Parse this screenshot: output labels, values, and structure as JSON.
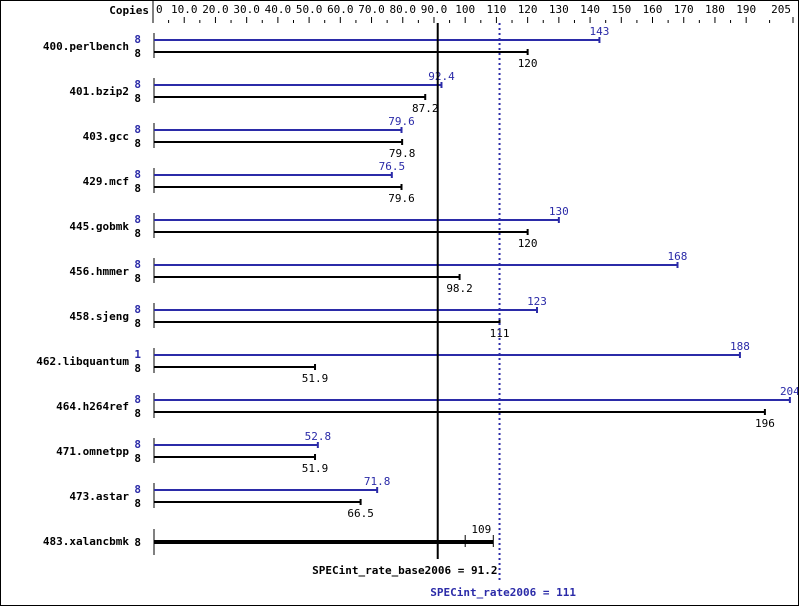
{
  "chart_data": {
    "type": "bar",
    "orientation": "horizontal",
    "title": "",
    "xlabel": "",
    "ylabel": "",
    "axis_header": "Copies",
    "xlim": [
      0,
      205
    ],
    "x_ticks": [
      "0",
      "10.0",
      "20.0",
      "30.0",
      "40.0",
      "50.0",
      "60.0",
      "70.0",
      "80.0",
      "90.0",
      "100",
      "110",
      "120",
      "130",
      "140",
      "150",
      "160",
      "170",
      "180",
      "190",
      "205"
    ],
    "x_tick_values": [
      0,
      10,
      20,
      30,
      40,
      50,
      60,
      70,
      80,
      90,
      100,
      110,
      120,
      130,
      140,
      150,
      160,
      170,
      180,
      190,
      205
    ],
    "grid": false,
    "legend": "none",
    "categories": [
      "400.perlbench",
      "401.bzip2",
      "403.gcc",
      "429.mcf",
      "445.gobmk",
      "456.hmmer",
      "458.sjeng",
      "462.libquantum",
      "464.h264ref",
      "471.omnetpp",
      "473.astar",
      "483.xalancbmk"
    ],
    "series": [
      {
        "name": "SPECint_rate2006 (peak)",
        "color": "#2b2ba8",
        "copies": [
          "8",
          "8",
          "8",
          "8",
          "8",
          "8",
          "8",
          "1",
          "8",
          "8",
          "8",
          "8"
        ],
        "values": [
          143,
          92.4,
          79.6,
          76.5,
          130,
          168,
          123,
          188,
          204,
          52.8,
          71.8,
          109
        ],
        "labels": [
          "143",
          "92.4",
          "79.6",
          "76.5",
          "130",
          "168",
          "123",
          "188",
          "204",
          "52.8",
          "71.8",
          "109"
        ]
      },
      {
        "name": "SPECint_rate_base2006 (base)",
        "color": "#000000",
        "copies": [
          "8",
          "8",
          "8",
          "8",
          "8",
          "8",
          "8",
          "8",
          "8",
          "8",
          "8",
          "8"
        ],
        "values": [
          120,
          87.2,
          79.8,
          79.6,
          120,
          98.2,
          111,
          51.9,
          196,
          51.9,
          66.5,
          109
        ],
        "labels": [
          "120",
          "87.2",
          "79.8",
          "79.6",
          "120",
          "98.2",
          "111",
          "51.9",
          "196",
          "51.9",
          "66.5",
          "109"
        ]
      }
    ],
    "annotations": [
      {
        "text": "SPECint_rate_base2006 = 91.2",
        "value": 91.2,
        "style": "solid",
        "color": "#000000"
      },
      {
        "text": "SPECint_rate2006 = 111",
        "value": 111,
        "style": "dotted",
        "color": "#2b2ba8"
      }
    ],
    "merged_row_note": "483.xalancbmk shows single combined bar (base and peak identical) with copies 8 and value 109"
  }
}
